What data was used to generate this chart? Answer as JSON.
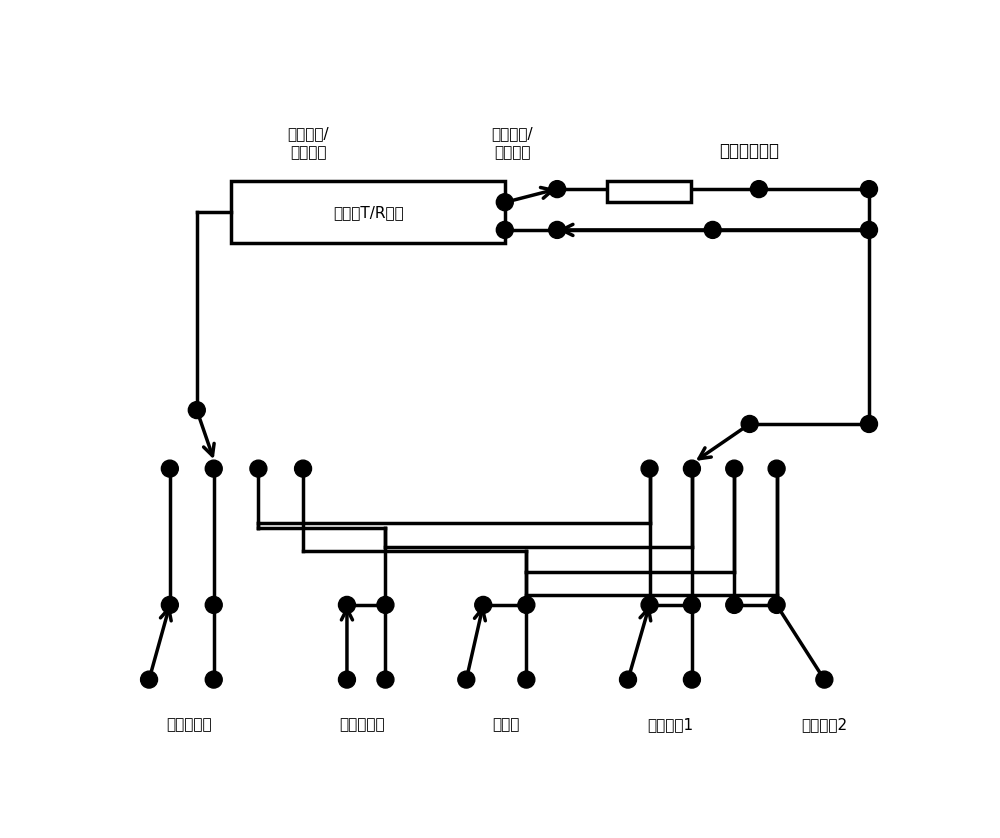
{
  "bg_color": "#ffffff",
  "lw": 2.5,
  "dot_r": 0.11,
  "labels": {
    "tx_in": "发射输入/\n接收输出",
    "tx_out": "发射输出/\n接收输入",
    "attenuator": "大功率衰减器",
    "tr_module": "毫米波T/R组件",
    "sig_gen": "信号发生器",
    "spectrum": "频谱分析仪",
    "power_meter": "功率计",
    "vna1": "矢网测试1",
    "vna2": "矢网测试2"
  }
}
